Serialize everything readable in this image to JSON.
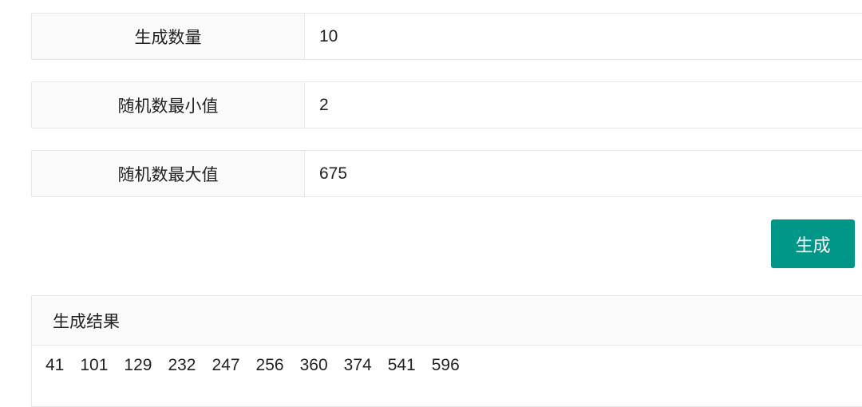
{
  "form": {
    "fields": [
      {
        "label": "生成数量",
        "value": "10"
      },
      {
        "label": "随机数最小值",
        "value": "2"
      },
      {
        "label": "随机数最大值",
        "value": "675"
      }
    ],
    "generate_label": "生成"
  },
  "result": {
    "title": "生成结果",
    "numbers": [
      "41",
      "101",
      "129",
      "232",
      "247",
      "256",
      "360",
      "374",
      "541",
      "596"
    ]
  },
  "colors": {
    "accent": "#009688"
  }
}
